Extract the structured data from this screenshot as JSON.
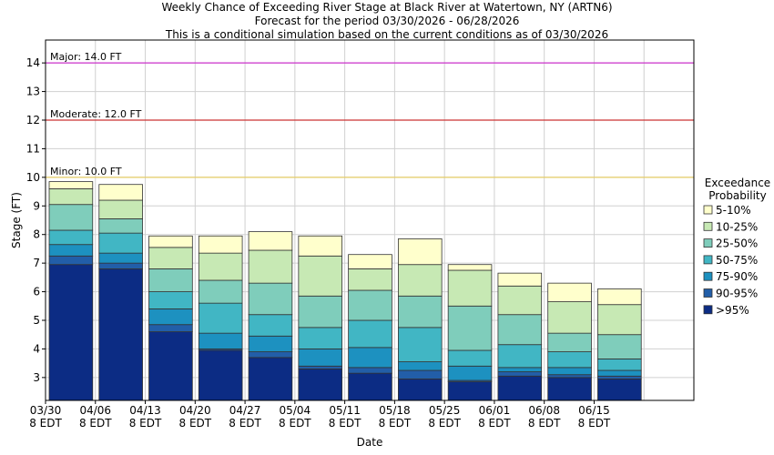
{
  "chart_data": {
    "type": "bar",
    "stacked": true,
    "title_lines": [
      "Weekly Chance of Exceeding River Stage at Black River at Watertown, NY (ARTN6)",
      "Forecast for the period 03/30/2026 - 06/28/2026",
      "This is a conditional simulation based on the current conditions as of 03/30/2026"
    ],
    "xlabel": "Date",
    "ylabel": "Stage (FT)",
    "ylim": [
      2.2,
      14.8
    ],
    "yticks": [
      "3",
      "4",
      "5",
      "6",
      "7",
      "8",
      "9",
      "10",
      "11",
      "12",
      "13",
      "14"
    ],
    "xticks": [
      {
        "line1": "03/30",
        "line2": "8 EDT"
      },
      {
        "line1": "04/06",
        "line2": "8 EDT"
      },
      {
        "line1": "04/13",
        "line2": "8 EDT"
      },
      {
        "line1": "04/20",
        "line2": "8 EDT"
      },
      {
        "line1": "04/27",
        "line2": "8 EDT"
      },
      {
        "line1": "05/04",
        "line2": "8 EDT"
      },
      {
        "line1": "05/11",
        "line2": "8 EDT"
      },
      {
        "line1": "05/18",
        "line2": "8 EDT"
      },
      {
        "line1": "05/25",
        "line2": "8 EDT"
      },
      {
        "line1": "06/01",
        "line2": "8 EDT"
      },
      {
        "line1": "06/08",
        "line2": "8 EDT"
      },
      {
        "line1": "06/15",
        "line2": "8 EDT"
      }
    ],
    "flood_levels": [
      {
        "label": "Major: 14.0 FT",
        "value": 14.0,
        "color": "#cc33cc"
      },
      {
        "label": "Moderate: 12.0 FT",
        "value": 12.0,
        "color": "#cc3333"
      },
      {
        "label": "Minor: 10.0 FT",
        "value": 10.0,
        "color": "#e6cc66"
      }
    ],
    "legend": {
      "title_lines": [
        "Exceedance",
        "Probability"
      ],
      "position": "right",
      "entries": [
        {
          "label": "5-10%",
          "color": "#ffffcc"
        },
        {
          "label": "10-25%",
          "color": "#c7e9b4"
        },
        {
          "label": "25-50%",
          "color": "#7fcdbb"
        },
        {
          "label": "50-75%",
          "color": "#41b6c4"
        },
        {
          "label": "75-90%",
          "color": "#1d91c0"
        },
        {
          "label": "90-95%",
          "color": "#225ea8"
        },
        {
          "label": ">95%",
          "color": "#0c2c84"
        }
      ]
    },
    "bars": [
      {
        "boundaries": [
          6.95,
          7.25,
          7.65,
          8.15,
          9.05,
          9.6,
          9.85
        ]
      },
      {
        "boundaries": [
          6.8,
          7.0,
          7.35,
          8.05,
          8.55,
          9.2,
          9.75
        ]
      },
      {
        "boundaries": [
          4.6,
          4.85,
          5.4,
          6.0,
          6.8,
          7.55,
          7.95
        ]
      },
      {
        "boundaries": [
          3.95,
          4.0,
          4.55,
          5.6,
          6.4,
          7.35,
          7.95
        ]
      },
      {
        "boundaries": [
          3.7,
          3.9,
          4.45,
          5.2,
          6.3,
          7.45,
          8.1
        ]
      },
      {
        "boundaries": [
          3.3,
          3.4,
          4.0,
          4.75,
          5.85,
          7.25,
          7.95
        ]
      },
      {
        "boundaries": [
          3.15,
          3.35,
          4.05,
          5.0,
          6.05,
          6.8,
          7.3
        ]
      },
      {
        "boundaries": [
          2.95,
          3.25,
          3.55,
          4.75,
          5.85,
          6.95,
          7.85
        ]
      },
      {
        "boundaries": [
          2.85,
          2.9,
          3.4,
          3.95,
          5.5,
          6.75,
          6.95
        ]
      },
      {
        "boundaries": [
          3.05,
          3.2,
          3.35,
          4.15,
          5.2,
          6.2,
          6.65
        ]
      },
      {
        "boundaries": [
          3.0,
          3.1,
          3.35,
          3.9,
          4.55,
          5.65,
          6.3
        ]
      },
      {
        "boundaries": [
          2.95,
          3.05,
          3.25,
          3.65,
          4.5,
          5.55,
          6.1
        ]
      }
    ]
  }
}
